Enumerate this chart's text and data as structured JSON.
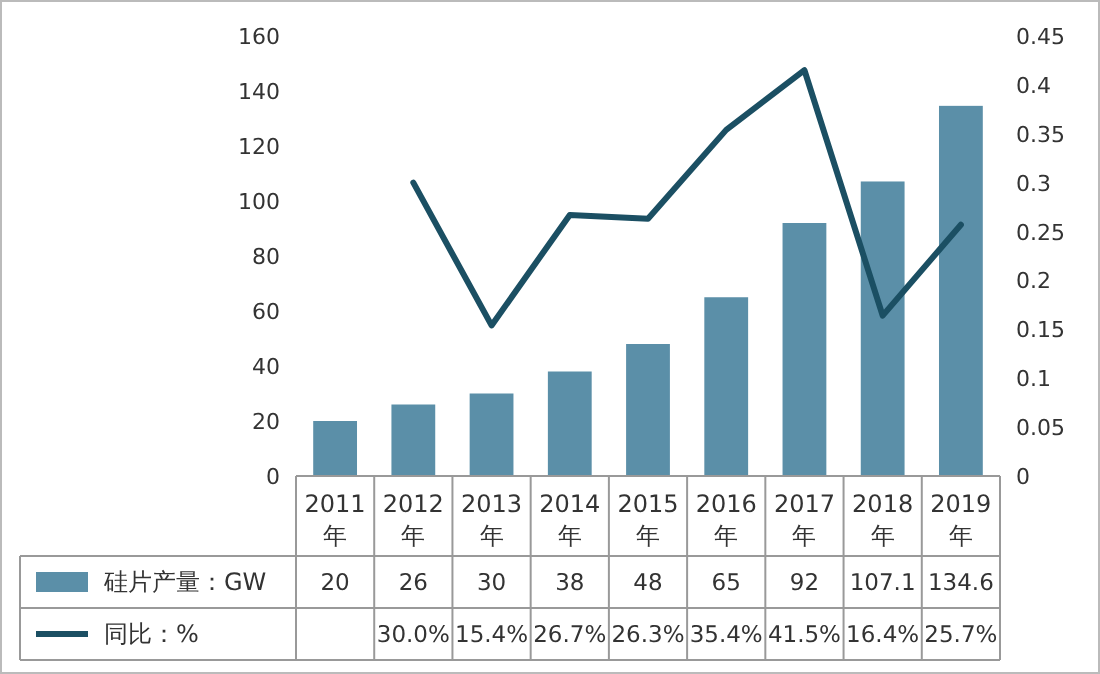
{
  "chart_data": {
    "type": "bar",
    "categories": [
      "2011年",
      "2012年",
      "2013年",
      "2014年",
      "2015年",
      "2016年",
      "2017年",
      "2018年",
      "2019年"
    ],
    "series": [
      {
        "name": "硅片产量：GW",
        "color": "#5b8fa8",
        "values": [
          20,
          26,
          30,
          38,
          48,
          65,
          92,
          107.1,
          134.6
        ],
        "value_labels": [
          "20",
          "26",
          "30",
          "38",
          "48",
          "65",
          "92",
          "107.1",
          "134.6"
        ]
      },
      {
        "name": "同比：%",
        "type": "line",
        "axis": "y2",
        "color": "#1b4f63",
        "values": [
          null,
          0.3,
          0.154,
          0.267,
          0.263,
          0.354,
          0.415,
          0.164,
          0.257
        ],
        "value_labels": [
          null,
          "30.0%",
          "15.4%",
          "26.7%",
          "26.3%",
          "35.4%",
          "41.5%",
          "16.4%",
          "25.7%"
        ]
      }
    ],
    "ylim": [
      0,
      160
    ],
    "yticks": [
      0,
      20,
      40,
      60,
      80,
      100,
      120,
      140,
      160
    ],
    "y2lim": [
      0,
      0.45
    ],
    "y2ticks": [
      0,
      0.05,
      0.1,
      0.15,
      0.2,
      0.25,
      0.3,
      0.35,
      0.4,
      0.45
    ],
    "legend": "bottom left",
    "grid": false
  }
}
